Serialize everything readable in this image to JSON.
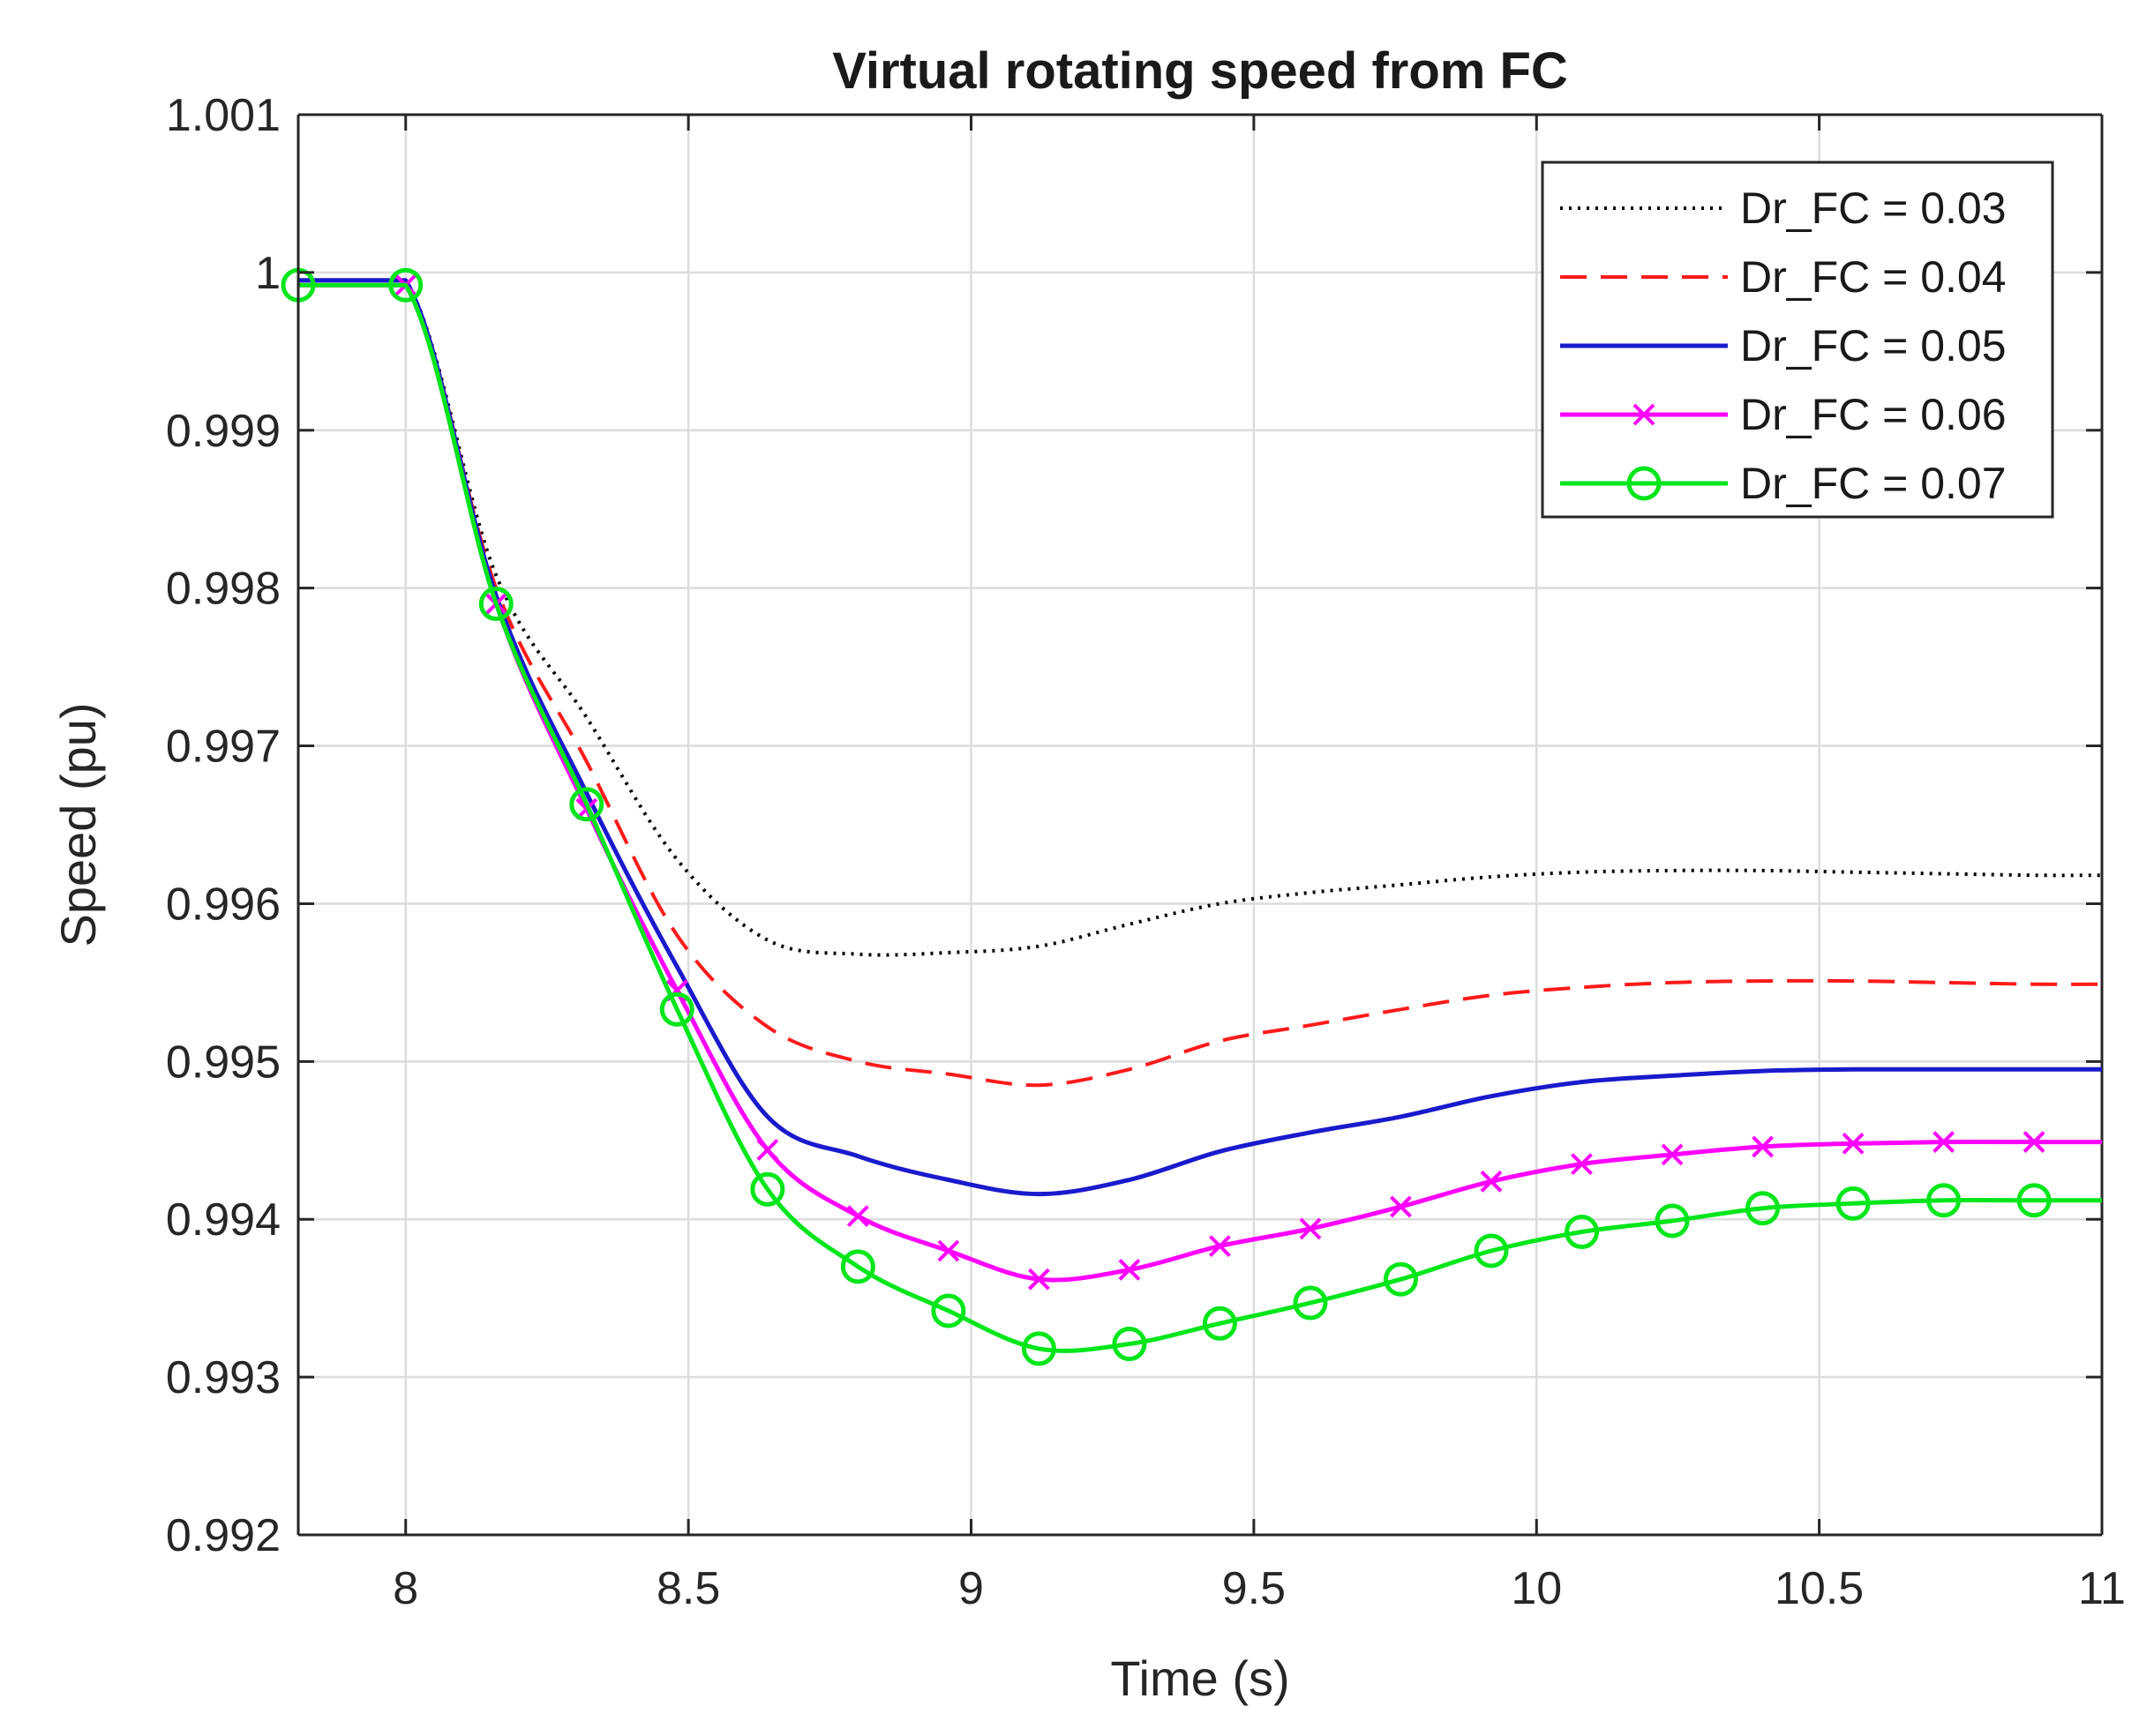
{
  "chart_data": {
    "type": "line",
    "title": "Virtual rotating speed from FC",
    "xlabel": "Time (s)",
    "ylabel": "Speed (pu)",
    "xlim": [
      7.81,
      11
    ],
    "ylim": [
      0.992,
      1.001
    ],
    "xticks": [
      8,
      8.5,
      9,
      9.5,
      10,
      10.5,
      11
    ],
    "xtick_labels": [
      "8",
      "8.5",
      "9",
      "9.5",
      "10",
      "10.5",
      "11"
    ],
    "yticks": [
      0.992,
      0.993,
      0.994,
      0.995,
      0.996,
      0.997,
      0.998,
      0.999,
      1,
      1.001
    ],
    "ytick_labels": [
      "0.992",
      "0.993",
      "0.994",
      "0.995",
      "0.996",
      "0.997",
      "0.998",
      "0.999",
      "1",
      "1.001"
    ],
    "grid": true,
    "legend_position": "top-right",
    "series": [
      {
        "name": "Dr_FC = 0.03",
        "color": "#000000",
        "style": "dotted",
        "marker": "none",
        "x": [
          7.81,
          8.0,
          8.16,
          8.32,
          8.48,
          8.64,
          8.8,
          8.96,
          9.12,
          9.28,
          9.44,
          9.6,
          9.76,
          9.92,
          10.08,
          10.24,
          10.4,
          10.56,
          10.72,
          10.88,
          11.0
        ],
        "y": [
          0.99995,
          0.99995,
          0.99808,
          0.99718,
          0.99628,
          0.99577,
          0.99568,
          0.99569,
          0.99573,
          0.99587,
          0.996,
          0.99607,
          0.99612,
          0.99617,
          0.9962,
          0.99621,
          0.99621,
          0.9962,
          0.99619,
          0.99618,
          0.99618
        ]
      },
      {
        "name": "Dr_FC = 0.04",
        "color": "#ff1a1a",
        "style": "dashed",
        "marker": "none",
        "x": [
          7.81,
          8.0,
          8.16,
          8.32,
          8.48,
          8.64,
          8.8,
          8.96,
          9.12,
          9.28,
          9.44,
          9.6,
          9.76,
          9.92,
          10.08,
          10.24,
          10.4,
          10.56,
          10.72,
          10.88,
          11.0
        ],
        "y": [
          0.99995,
          0.99995,
          0.998,
          0.9969,
          0.9958,
          0.99522,
          0.995,
          0.99492,
          0.99485,
          0.99495,
          0.99513,
          0.99523,
          0.99533,
          0.99542,
          0.99547,
          0.9955,
          0.99551,
          0.99551,
          0.9955,
          0.99549,
          0.99549
        ]
      },
      {
        "name": "Dr_FC = 0.05",
        "color": "#1a1acc",
        "style": "solid",
        "marker": "none",
        "x": [
          7.81,
          8.0,
          8.16,
          8.32,
          8.48,
          8.64,
          8.8,
          8.96,
          9.12,
          9.28,
          9.44,
          9.6,
          9.76,
          9.92,
          10.08,
          10.24,
          10.4,
          10.56,
          10.72,
          10.88,
          11.0
        ],
        "y": [
          0.99995,
          0.99995,
          0.99795,
          0.9967,
          0.9956,
          0.99465,
          0.9944,
          0.99425,
          0.99416,
          0.99425,
          0.99443,
          0.99455,
          0.99465,
          0.99478,
          0.99487,
          0.99491,
          0.99494,
          0.99495,
          0.99495,
          0.99495,
          0.99495
        ]
      },
      {
        "name": "Dr_FC = 0.06",
        "color": "#ff00ff",
        "style": "solid",
        "marker": "x",
        "x": [
          7.81,
          8.0,
          8.16,
          8.32,
          8.48,
          8.64,
          8.8,
          8.96,
          9.12,
          9.28,
          9.44,
          9.6,
          9.76,
          9.92,
          10.08,
          10.24,
          10.4,
          10.56,
          10.72,
          10.88,
          11.0
        ],
        "y": [
          0.99992,
          0.99992,
          0.9979,
          0.9966,
          0.99545,
          0.99444,
          0.99402,
          0.9938,
          0.99362,
          0.99368,
          0.99383,
          0.99394,
          0.99408,
          0.99424,
          0.99435,
          0.99441,
          0.99446,
          0.99448,
          0.99449,
          0.99449,
          0.99449
        ]
      },
      {
        "name": "Dr_FC = 0.07",
        "color": "#00e61a",
        "style": "solid",
        "marker": "o",
        "x": [
          7.81,
          8.0,
          8.16,
          8.32,
          8.48,
          8.64,
          8.8,
          8.96,
          9.12,
          9.28,
          9.44,
          9.6,
          9.76,
          9.92,
          10.08,
          10.24,
          10.4,
          10.56,
          10.72,
          10.88,
          11.0
        ],
        "y": [
          0.99992,
          0.99992,
          0.9979,
          0.99663,
          0.99533,
          0.99419,
          0.9937,
          0.99342,
          0.99318,
          0.99321,
          0.99334,
          0.99347,
          0.99362,
          0.9938,
          0.99392,
          0.99399,
          0.99407,
          0.9941,
          0.99412,
          0.99412,
          0.99412
        ]
      }
    ]
  }
}
